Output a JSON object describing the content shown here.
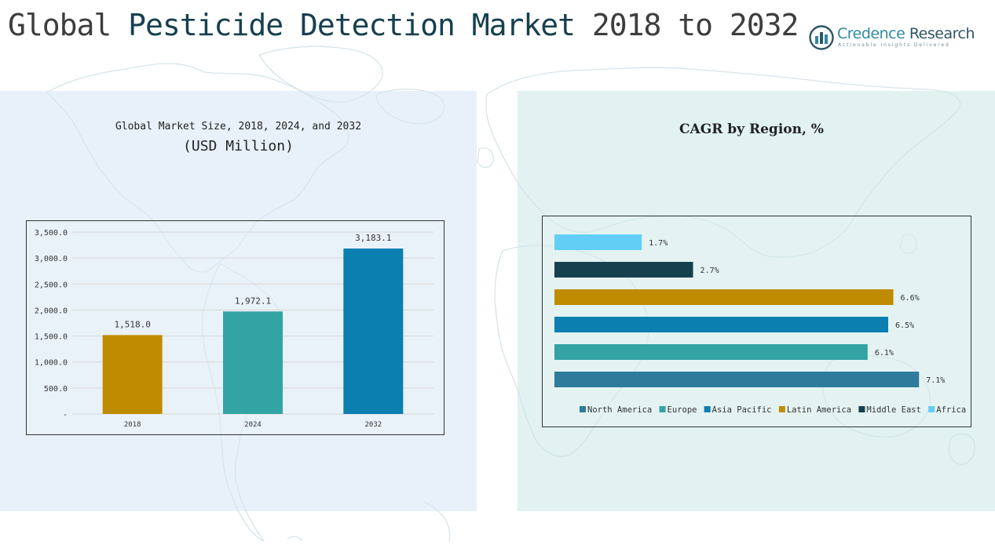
{
  "page": {
    "title_part1": "Global",
    "title_part2": "Pesticide Detection Market",
    "title_part3": "2018 to 2032"
  },
  "logo": {
    "name_word1": "Credence",
    "name_word2": "Research",
    "tagline": "Actionable Insights Delivered",
    "icon": "bar-chart-circle-icon"
  },
  "left_panel": {
    "title_line1": "Global Market Size, 2018, 2024, and 2032",
    "title_line2": "(USD Million)"
  },
  "right_panel": {
    "title": "CAGR by Region, %"
  },
  "chart_data": [
    {
      "type": "bar",
      "title": "Global Market Size, 2018, 2024, and 2032",
      "subtitle": "(USD Million)",
      "categories": [
        "2018",
        "2024",
        "2032"
      ],
      "values": [
        1518.0,
        1972.1,
        3183.1
      ],
      "value_labels": [
        "1,518.0",
        "1,972.1",
        "3,183.1"
      ],
      "colors": [
        "#bf8c00",
        "#33a3a3",
        "#0a7fb0"
      ],
      "ylim": [
        0,
        3500
      ],
      "yticks": [
        0,
        500,
        1000,
        1500,
        2000,
        2500,
        3000,
        3500
      ],
      "ytick_labels": [
        "-",
        "500.0",
        "1,000.0",
        "1,500.0",
        "2,000.0",
        "2,500.0",
        "3,000.0",
        "3,500.0"
      ],
      "grid": true
    },
    {
      "type": "bar",
      "orientation": "horizontal",
      "title": "CAGR by Region, %",
      "categories": [
        "North America",
        "Europe",
        "Asia Pacific",
        "Latin America",
        "Middle East",
        "Africa"
      ],
      "values": [
        7.1,
        6.1,
        6.5,
        6.6,
        2.7,
        1.7
      ],
      "value_labels": [
        "7.1%",
        "6.1%",
        "6.5%",
        "6.6%",
        "2.7%",
        "1.7%"
      ],
      "colors": [
        "#2e7b9b",
        "#33a3a3",
        "#0a7fb0",
        "#bf8c00",
        "#17404f",
        "#63cef5"
      ],
      "xlim": [
        0,
        7.8
      ],
      "legend": "bottom",
      "grid": false
    }
  ]
}
